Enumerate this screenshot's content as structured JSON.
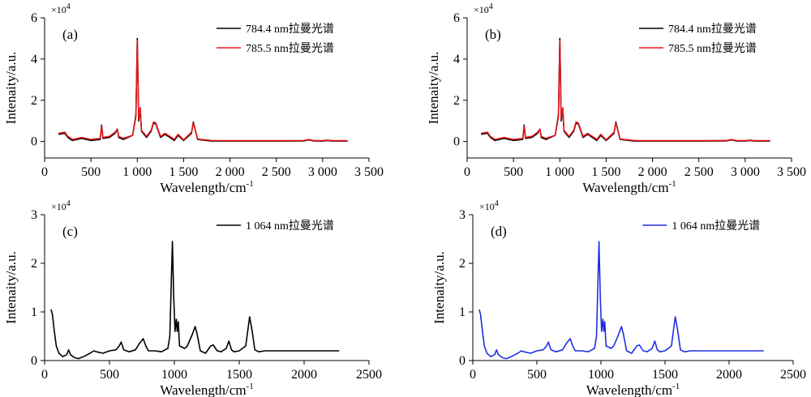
{
  "chart_data": [
    {
      "type": "line",
      "panel_label": "(a)",
      "xlabel": "Wavelength/cm",
      "xlabel_sup": "-1",
      "ylabel": "Intenaity/a.u.",
      "y_multiplier": {
        "base": "×10",
        "exp": "4"
      },
      "xlim": [
        0,
        3500
      ],
      "ylim": [
        -0.8,
        6
      ],
      "x_ticks": [
        0,
        500,
        1000,
        1500,
        2000,
        2500,
        3000,
        3500
      ],
      "x_tick_labels": [
        "0",
        "500",
        "1 000",
        "1 500",
        "2 000",
        "2 500",
        "3 000",
        "3 500"
      ],
      "y_ticks": [
        0,
        2,
        4,
        6
      ],
      "y_tick_labels": [
        "0",
        "2",
        "4",
        "6"
      ],
      "legend": "top-right",
      "grid": false,
      "series": [
        {
          "name": "784.4 nm拉曼光谱",
          "color": "#000000",
          "x": [
            150,
            220,
            250,
            300,
            400,
            500,
            600,
            615,
            630,
            700,
            760,
            785,
            800,
            850,
            950,
            985,
            1000,
            1015,
            1032,
            1045,
            1100,
            1150,
            1175,
            1200,
            1250,
            1300,
            1400,
            1440,
            1500,
            1585,
            1605,
            1650,
            1800,
            2000,
            2500,
            2800,
            2850,
            2900,
            3000,
            3050,
            3100,
            3270
          ],
          "y": [
            0.35,
            0.4,
            0.2,
            0.05,
            0.15,
            0.05,
            0.1,
            0.8,
            0.15,
            0.2,
            0.4,
            0.6,
            0.2,
            0.1,
            0.3,
            1.3,
            5.0,
            1.0,
            1.6,
            0.5,
            0.2,
            0.5,
            0.9,
            0.85,
            0.2,
            0.35,
            0.05,
            0.3,
            0.05,
            0.4,
            0.95,
            0.1,
            0.02,
            0.02,
            0.02,
            0.03,
            0.08,
            0.03,
            0.02,
            0.05,
            0.02,
            0.02
          ]
        },
        {
          "name": "785.5 nm拉曼光谱",
          "color": "#e8161b",
          "x": [
            150,
            220,
            250,
            300,
            400,
            500,
            600,
            615,
            630,
            700,
            760,
            785,
            800,
            850,
            950,
            985,
            1000,
            1015,
            1032,
            1045,
            1100,
            1150,
            1175,
            1200,
            1250,
            1300,
            1400,
            1440,
            1500,
            1585,
            1605,
            1650,
            1800,
            2000,
            2500,
            2800,
            2850,
            2900,
            3000,
            3050,
            3100,
            3270
          ],
          "y": [
            0.4,
            0.45,
            0.25,
            0.1,
            0.2,
            0.1,
            0.15,
            0.75,
            0.2,
            0.25,
            0.45,
            0.6,
            0.25,
            0.15,
            0.3,
            1.2,
            4.9,
            1.1,
            1.65,
            0.55,
            0.25,
            0.55,
            0.95,
            0.9,
            0.25,
            0.4,
            0.1,
            0.35,
            0.08,
            0.45,
            0.9,
            0.12,
            0.05,
            0.04,
            0.04,
            0.05,
            0.1,
            0.05,
            0.04,
            0.07,
            0.04,
            0.04
          ]
        }
      ]
    },
    {
      "type": "line",
      "panel_label": "(b)",
      "xlabel": "Wavelength/cm",
      "xlabel_sup": "-1",
      "ylabel": "Intenaity/a.u.",
      "y_multiplier": {
        "base": "×10",
        "exp": "4"
      },
      "xlim": [
        0,
        3500
      ],
      "ylim": [
        -0.8,
        6
      ],
      "x_ticks": [
        0,
        500,
        1000,
        1500,
        2000,
        2500,
        3000,
        3500
      ],
      "x_tick_labels": [
        "0",
        "500",
        "1 000",
        "1 500",
        "2 000",
        "2 500",
        "3 000",
        "3 500"
      ],
      "y_ticks": [
        0,
        2,
        4,
        6
      ],
      "y_tick_labels": [
        "0",
        "2",
        "4",
        "6"
      ],
      "legend": "top-right",
      "grid": false,
      "series": [
        {
          "name": "784.4 nm拉曼光谱",
          "color": "#000000",
          "x": [
            150,
            220,
            250,
            300,
            400,
            500,
            600,
            615,
            630,
            700,
            760,
            785,
            800,
            850,
            950,
            985,
            1000,
            1015,
            1032,
            1045,
            1100,
            1150,
            1175,
            1200,
            1250,
            1300,
            1400,
            1440,
            1500,
            1585,
            1605,
            1650,
            1800,
            2000,
            2500,
            2800,
            2850,
            2900,
            3000,
            3050,
            3100,
            3270
          ],
          "y": [
            0.35,
            0.4,
            0.2,
            0.05,
            0.15,
            0.05,
            0.1,
            0.8,
            0.15,
            0.2,
            0.4,
            0.6,
            0.2,
            0.1,
            0.3,
            1.3,
            5.0,
            1.0,
            1.6,
            0.5,
            0.2,
            0.5,
            0.9,
            0.85,
            0.2,
            0.35,
            0.05,
            0.3,
            0.05,
            0.4,
            0.95,
            0.1,
            0.02,
            0.02,
            0.02,
            0.03,
            0.08,
            0.03,
            0.02,
            0.05,
            0.02,
            0.02
          ]
        },
        {
          "name": "785.5 nm拉曼光谱",
          "color": "#e8161b",
          "x": [
            150,
            220,
            250,
            300,
            400,
            500,
            600,
            615,
            630,
            700,
            760,
            785,
            800,
            850,
            950,
            985,
            1000,
            1015,
            1032,
            1045,
            1100,
            1150,
            1175,
            1200,
            1250,
            1300,
            1400,
            1440,
            1500,
            1585,
            1605,
            1650,
            1800,
            2000,
            2500,
            2800,
            2850,
            2900,
            3000,
            3050,
            3100,
            3270
          ],
          "y": [
            0.4,
            0.45,
            0.25,
            0.1,
            0.2,
            0.1,
            0.15,
            0.75,
            0.2,
            0.25,
            0.45,
            0.6,
            0.25,
            0.15,
            0.3,
            1.2,
            4.9,
            1.1,
            1.65,
            0.55,
            0.25,
            0.55,
            0.95,
            0.9,
            0.25,
            0.4,
            0.1,
            0.35,
            0.08,
            0.45,
            0.9,
            0.12,
            0.05,
            0.04,
            0.04,
            0.05,
            0.1,
            0.05,
            0.04,
            0.07,
            0.04,
            0.04
          ]
        }
      ]
    },
    {
      "type": "line",
      "panel_label": "(c)",
      "xlabel": "Wavelength/cm",
      "xlabel_sup": "-1",
      "ylabel": "Intenaity/a.u.",
      "y_multiplier": {
        "base": "×10",
        "exp": "4"
      },
      "xlim": [
        0,
        2500
      ],
      "ylim": [
        0,
        3
      ],
      "x_ticks": [
        0,
        500,
        1000,
        1500,
        2000,
        2500
      ],
      "x_tick_labels": [
        "0",
        "500",
        "1000",
        "1500",
        "2000",
        "2500"
      ],
      "y_ticks": [
        0,
        1,
        2,
        3
      ],
      "y_tick_labels": [
        "0",
        "1",
        "2",
        "3"
      ],
      "legend": "top-right",
      "grid": false,
      "series": [
        {
          "name": "1 064 nm拉曼光谱",
          "color": "#000000",
          "x": [
            50,
            60,
            75,
            90,
            110,
            140,
            170,
            185,
            200,
            230,
            260,
            300,
            350,
            380,
            400,
            450,
            500,
            550,
            575,
            590,
            610,
            650,
            700,
            730,
            760,
            780,
            800,
            850,
            900,
            950,
            965,
            985,
            995,
            1005,
            1015,
            1022,
            1030,
            1040,
            1080,
            1100,
            1140,
            1160,
            1175,
            1200,
            1240,
            1280,
            1300,
            1330,
            1360,
            1400,
            1420,
            1440,
            1460,
            1500,
            1550,
            1580,
            1600,
            1620,
            1650,
            1700,
            1800,
            2000,
            2270
          ],
          "y": [
            1.05,
            0.95,
            0.6,
            0.3,
            0.15,
            0.08,
            0.12,
            0.22,
            0.12,
            0.06,
            0.04,
            0.08,
            0.15,
            0.2,
            0.18,
            0.15,
            0.2,
            0.22,
            0.3,
            0.38,
            0.22,
            0.18,
            0.22,
            0.35,
            0.45,
            0.3,
            0.2,
            0.2,
            0.18,
            0.25,
            0.5,
            2.45,
            1.3,
            0.6,
            0.85,
            0.6,
            0.8,
            0.3,
            0.25,
            0.3,
            0.55,
            0.7,
            0.55,
            0.2,
            0.15,
            0.3,
            0.32,
            0.2,
            0.18,
            0.25,
            0.4,
            0.22,
            0.18,
            0.2,
            0.3,
            0.9,
            0.6,
            0.22,
            0.18,
            0.2,
            0.2,
            0.2,
            0.2
          ]
        }
      ]
    },
    {
      "type": "line",
      "panel_label": "(d)",
      "xlabel": "Wavelength/cm",
      "xlabel_sup": "-1",
      "ylabel": "Intenaity/a.u.",
      "y_multiplier": {
        "base": "×10",
        "exp": "4"
      },
      "xlim": [
        0,
        2500
      ],
      "ylim": [
        0,
        3
      ],
      "x_ticks": [
        0,
        500,
        1000,
        1500,
        2000,
        2500
      ],
      "x_tick_labels": [
        "0",
        "500",
        "1000",
        "1500",
        "2000",
        "2500"
      ],
      "y_ticks": [
        0,
        1,
        2,
        3
      ],
      "y_tick_labels": [
        "0",
        "1",
        "2",
        "3"
      ],
      "legend": "top-right",
      "grid": false,
      "series": [
        {
          "name": "1 064 nm拉曼光谱",
          "color": "#1f2fe0",
          "x": [
            50,
            60,
            75,
            90,
            110,
            140,
            170,
            185,
            200,
            230,
            260,
            300,
            350,
            380,
            400,
            450,
            500,
            550,
            575,
            590,
            610,
            650,
            700,
            730,
            760,
            780,
            800,
            850,
            900,
            950,
            965,
            985,
            995,
            1005,
            1015,
            1022,
            1030,
            1040,
            1080,
            1100,
            1140,
            1160,
            1175,
            1200,
            1240,
            1280,
            1300,
            1330,
            1360,
            1400,
            1420,
            1440,
            1460,
            1500,
            1550,
            1580,
            1600,
            1620,
            1650,
            1700,
            1800,
            2000,
            2270
          ],
          "y": [
            1.05,
            0.95,
            0.6,
            0.3,
            0.15,
            0.08,
            0.12,
            0.22,
            0.12,
            0.06,
            0.04,
            0.08,
            0.15,
            0.2,
            0.18,
            0.15,
            0.2,
            0.22,
            0.3,
            0.38,
            0.22,
            0.18,
            0.22,
            0.35,
            0.45,
            0.3,
            0.2,
            0.2,
            0.18,
            0.25,
            0.5,
            2.45,
            1.3,
            0.6,
            0.85,
            0.6,
            0.8,
            0.3,
            0.25,
            0.3,
            0.55,
            0.7,
            0.55,
            0.2,
            0.15,
            0.3,
            0.32,
            0.2,
            0.18,
            0.25,
            0.4,
            0.22,
            0.18,
            0.2,
            0.3,
            0.9,
            0.6,
            0.22,
            0.18,
            0.2,
            0.2,
            0.2,
            0.2
          ]
        }
      ]
    }
  ]
}
